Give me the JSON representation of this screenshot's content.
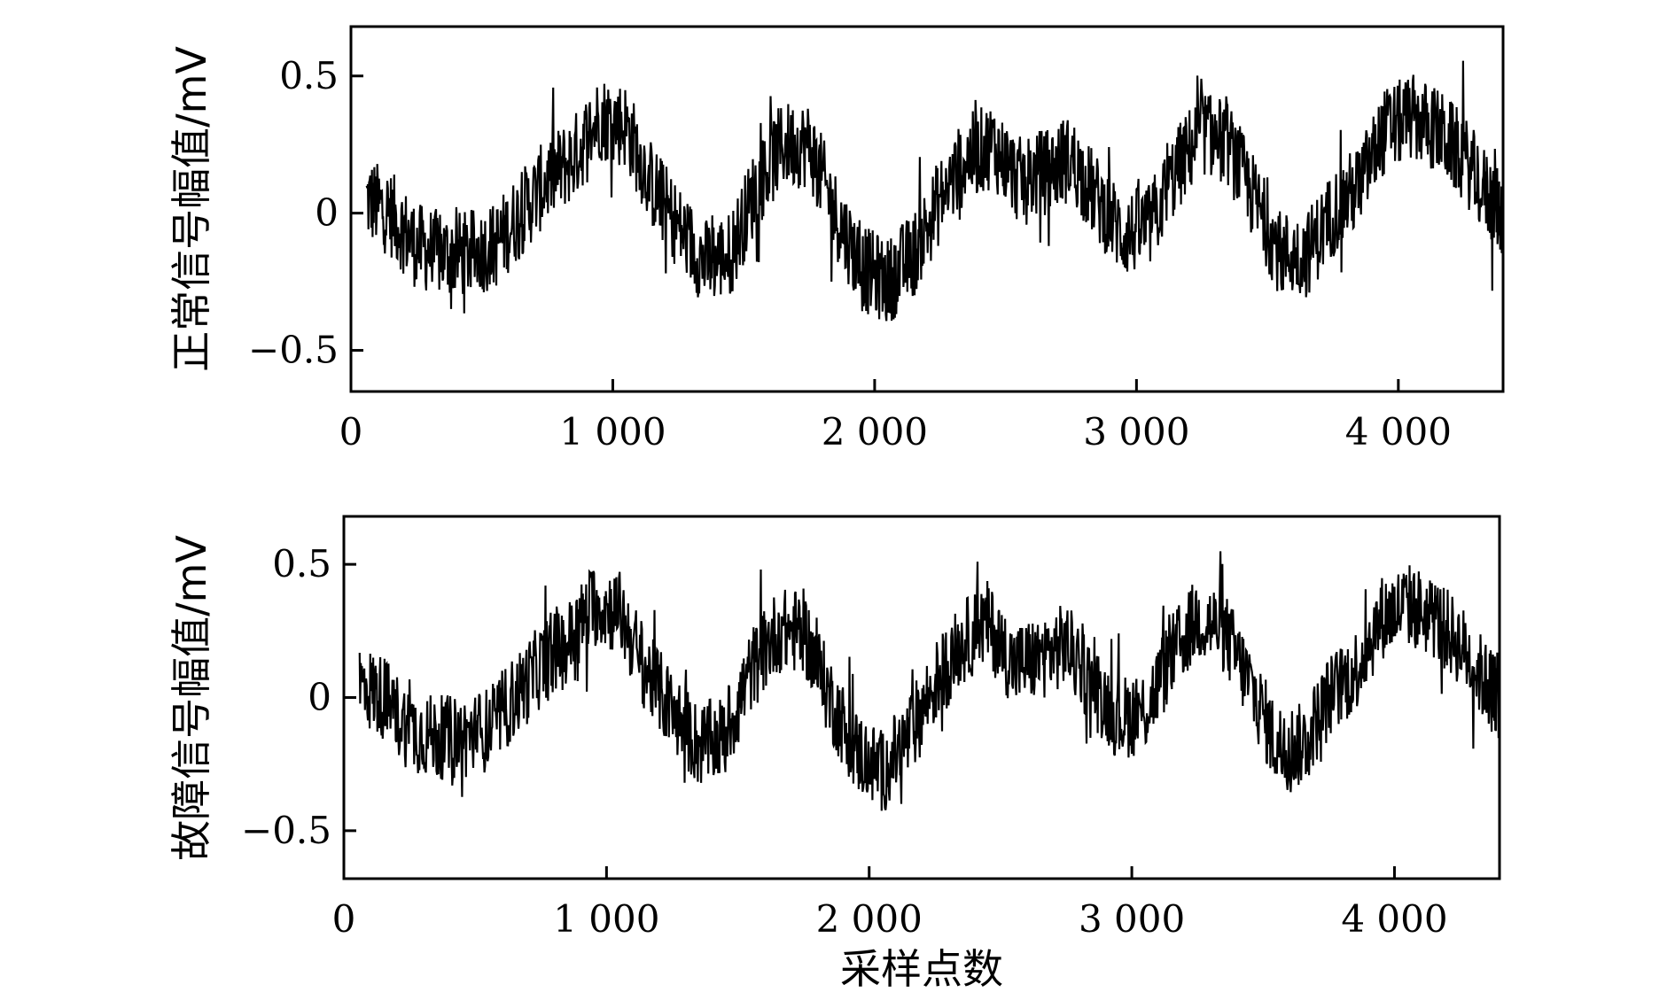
{
  "chart_data": [
    {
      "type": "line",
      "ylabel": "正常信号幅值/mV",
      "xlabel": "",
      "xlim": [
        0,
        4400
      ],
      "ylim": [
        -0.65,
        0.68
      ],
      "xticks": [
        0,
        1000,
        2000,
        3000,
        4000
      ],
      "xtick_labels": [
        "0",
        "1 000",
        "2 000",
        "3 000",
        "4 000"
      ],
      "yticks": [
        -0.5,
        0,
        0.5
      ],
      "ytick_labels": [
        "−0.5",
        "0",
        "0.5"
      ],
      "grid": false,
      "series": [
        {
          "color": "#000000",
          "x": [
            60,
            150,
            250,
            350,
            450,
            550,
            650,
            750,
            850,
            950,
            1050,
            1150,
            1250,
            1350,
            1450,
            1550,
            1650,
            1750,
            1850,
            1950,
            2050,
            2150,
            2250,
            2350,
            2450,
            2550,
            2650,
            2750,
            2850,
            2950,
            3050,
            3150,
            3250,
            3350,
            3450,
            3550,
            3650,
            3750,
            3850,
            3950,
            4050,
            4150,
            4250,
            4350,
            4400
          ],
          "y": [
            0.05,
            0.0,
            -0.12,
            -0.15,
            -0.15,
            -0.12,
            0.0,
            0.12,
            0.2,
            0.35,
            0.32,
            0.1,
            -0.05,
            -0.18,
            -0.15,
            0.1,
            0.25,
            0.25,
            0.0,
            -0.2,
            -0.25,
            -0.15,
            0.05,
            0.2,
            0.25,
            0.12,
            0.15,
            0.2,
            0.05,
            -0.08,
            -0.05,
            0.15,
            0.3,
            0.25,
            0.05,
            -0.15,
            -0.15,
            0.0,
            0.1,
            0.3,
            0.35,
            0.3,
            0.2,
            0.05,
            0.0
          ]
        }
      ]
    },
    {
      "type": "line",
      "ylabel": "故障信号幅值/mV",
      "xlabel": "采样点数",
      "xlim": [
        0,
        4400
      ],
      "ylim": [
        -0.68,
        0.68
      ],
      "xticks": [
        0,
        1000,
        2000,
        3000,
        4000
      ],
      "xtick_labels": [
        "0",
        "1 000",
        "2 000",
        "3 000",
        "4 000"
      ],
      "yticks": [
        -0.5,
        0,
        0.5
      ],
      "ytick_labels": [
        "−0.5",
        "0",
        "0.5"
      ],
      "grid": false,
      "series": [
        {
          "color": "#000000",
          "x": [
            60,
            150,
            250,
            350,
            450,
            550,
            650,
            750,
            850,
            950,
            1050,
            1150,
            1250,
            1350,
            1450,
            1550,
            1650,
            1750,
            1850,
            1950,
            2050,
            2150,
            2250,
            2350,
            2450,
            2550,
            2650,
            2750,
            2850,
            2950,
            3050,
            3150,
            3250,
            3350,
            3450,
            3550,
            3650,
            3750,
            3850,
            3950,
            4050,
            4150,
            4250,
            4350,
            4400
          ],
          "y": [
            0.05,
            0.0,
            -0.12,
            -0.15,
            -0.15,
            -0.12,
            0.0,
            0.12,
            0.2,
            0.35,
            0.32,
            0.1,
            -0.05,
            -0.18,
            -0.15,
            0.1,
            0.25,
            0.25,
            0.0,
            -0.2,
            -0.28,
            -0.15,
            0.05,
            0.2,
            0.28,
            0.12,
            0.15,
            0.2,
            0.05,
            -0.08,
            -0.05,
            0.15,
            0.3,
            0.25,
            0.05,
            -0.18,
            -0.18,
            0.0,
            0.1,
            0.3,
            0.35,
            0.3,
            0.2,
            0.05,
            0.0
          ]
        }
      ]
    }
  ]
}
